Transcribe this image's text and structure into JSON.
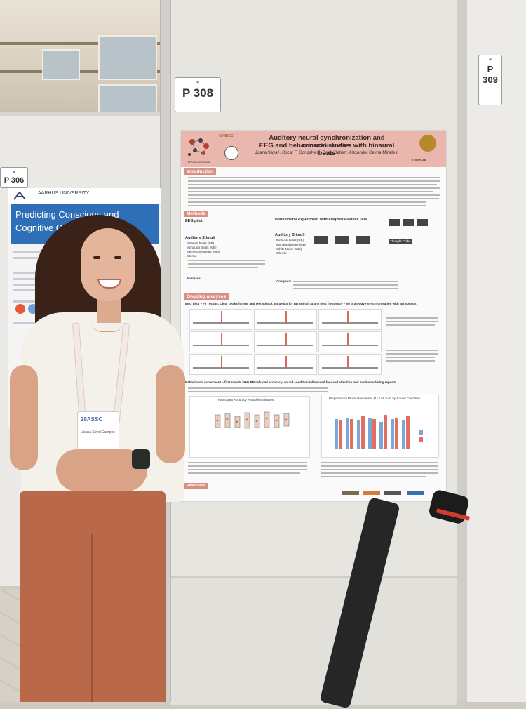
{
  "scene": {
    "neighbor_board_number": "P 306",
    "main_board_number": "P 308",
    "right_board_number": "P 309"
  },
  "neighbor_poster": {
    "university": "AARHUS UNIVERSITY",
    "title": "Predicting Conscious and Cognitive Outcomes after C"
  },
  "poster": {
    "title_line1": "Auditory neural synchronization and consciousness:",
    "title_line2": "EEG and behavioural studies with binaural beats",
    "authors": "Joana Sayal¹, Óscar F. Gonçalves², Boris Kleber³, Alexandre Celma-Miralles³",
    "lab_name": "PROACTION LAB",
    "partner_logo": "CINEICC",
    "university_logo": "COIMBRA",
    "sections": {
      "introduction": "Introduction",
      "methods": "Methods",
      "ongoing": "Ongoing analyses",
      "references": "References"
    },
    "methods": {
      "eeg_pilot": "EEG pilot",
      "behavioural": "Behavioural experiment with adapted Flanker Task",
      "auditory_stimuli": "Auditory Stimuli",
      "stimuli_items": [
        "Binaural beats (BB)",
        "Monaural Beats (MB)",
        "Metronome Beats (Met)",
        "Silence"
      ],
      "stimuli_items_behav": [
        "Binaural beats (BB)",
        "Monaural Beats (MB)",
        "White Noise (WN)",
        "Silence"
      ],
      "analyses_label": "Analyses:",
      "thought_probe": "Thought Probe"
    },
    "ongoing": {
      "eeg_result": "EEG pilot – FT results: Clear peaks for MB and Met stimuli, no peaks for BB stimuli at any beat frequency – no brainwave synchronisation with BB sounds",
      "behav_result": "Behavioural experiment – first results: 6Hz BB reduced accuracy, sound condition influenced focused attention and mind-wandering reports",
      "accuracy_chart_title": "Participant Accuracy + Model Estimates",
      "proportion_chart_title": "Proportion of Probe Responses (1=2 vs 3=4) by Sound Condition"
    }
  },
  "badge": {
    "conference": "28ASSC",
    "name": "Joana Sayal Campos"
  }
}
